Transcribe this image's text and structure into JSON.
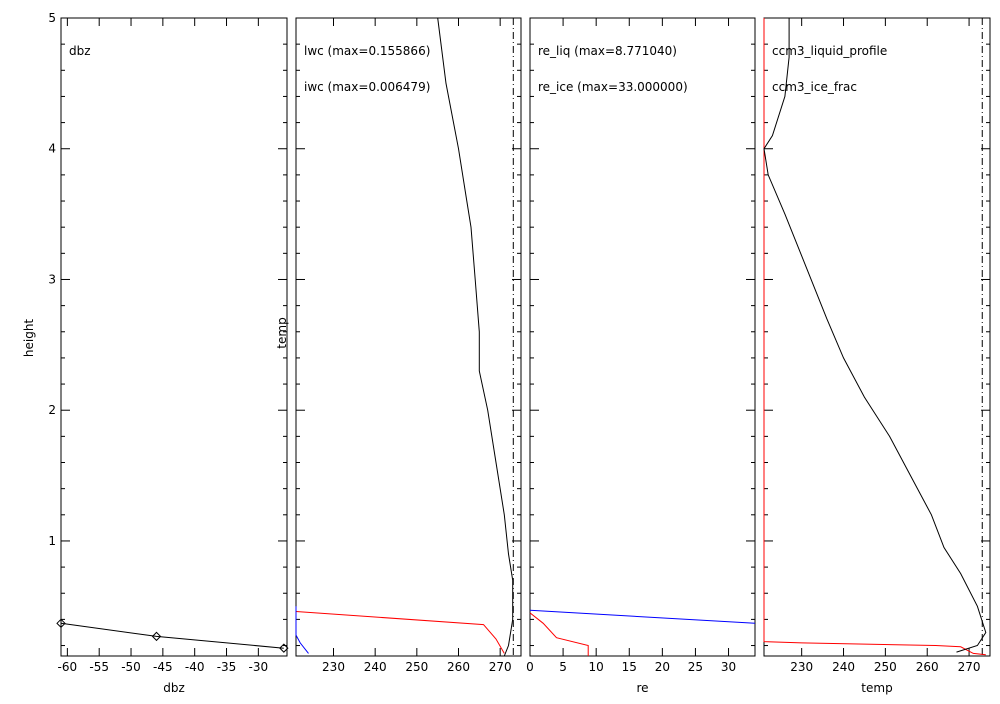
{
  "chart_data": [
    {
      "type": "line",
      "xlabel": "dbz",
      "ylabel": "height",
      "xlim": [
        -61,
        -25.5
      ],
      "ylim": [
        0.12,
        5.0
      ],
      "xticks": [
        -60,
        -55,
        -50,
        -45,
        -40,
        -35,
        -30
      ],
      "yticks": [
        1,
        2,
        3,
        4,
        5
      ],
      "legend": [
        {
          "text": "dbz",
          "color": "#000000"
        }
      ],
      "series": [
        {
          "name": "dbz",
          "color": "#000000",
          "marker": "diamond",
          "points": [
            [
              -61,
              0.37
            ],
            [
              -46,
              0.27
            ],
            [
              -26,
              0.18
            ]
          ]
        }
      ]
    },
    {
      "type": "line",
      "xlabel": "",
      "ylabel": "temp",
      "xlim": [
        221,
        275
      ],
      "ylim": [
        0.12,
        5.0
      ],
      "xticks": [
        230,
        240,
        250,
        260,
        270
      ],
      "legend": [
        {
          "text": "lwc (max=0.155866)",
          "color": "#ff0000"
        },
        {
          "text": "iwc (max=0.006479)",
          "color": "#0000ff"
        }
      ],
      "series": [
        {
          "name": "lwc",
          "color": "#ff0000",
          "points": [
            [
              221,
              0.46
            ],
            [
              266,
              0.36
            ],
            [
              269,
              0.25
            ],
            [
              271,
              0.14
            ]
          ]
        },
        {
          "name": "iwc",
          "color": "#0000ff",
          "points": [
            [
              221,
              0.5
            ],
            [
              221,
              0.28
            ],
            [
              222,
              0.22
            ],
            [
              224,
              0.14
            ]
          ]
        },
        {
          "name": "temp",
          "color": "#000000",
          "points": [
            [
              255,
              5.0
            ],
            [
              257,
              4.5
            ],
            [
              260,
              4.0
            ],
            [
              262,
              3.6
            ],
            [
              263,
              3.4
            ],
            [
              264,
              3.0
            ],
            [
              265,
              2.6
            ],
            [
              265,
              2.3
            ],
            [
              267,
              2.0
            ],
            [
              269,
              1.6
            ],
            [
              271,
              1.2
            ],
            [
              272,
              0.9
            ],
            [
              273,
              0.7
            ],
            [
              273,
              0.4
            ],
            [
              272,
              0.2
            ],
            [
              271,
              0.12
            ]
          ]
        }
      ],
      "reference_lines": [
        273.15
      ]
    },
    {
      "type": "line",
      "xlabel": "re",
      "ylabel": "",
      "xlim": [
        0,
        34
      ],
      "ylim": [
        0.12,
        5.0
      ],
      "xticks": [
        0,
        5,
        10,
        15,
        20,
        25,
        30
      ],
      "legend": [
        {
          "text": "re_liq (max=8.771040)",
          "color": "#ff0000"
        },
        {
          "text": "re_ice (max=33.000000)",
          "color": "#0000ff"
        }
      ],
      "series": [
        {
          "name": "re_liq",
          "color": "#ff0000",
          "points": [
            [
              0,
              0.45
            ],
            [
              2,
              0.37
            ],
            [
              4,
              0.26
            ],
            [
              8.8,
              0.2
            ],
            [
              8.8,
              0.12
            ]
          ]
        },
        {
          "name": "re_ice",
          "color": "#0000ff",
          "points": [
            [
              0,
              0.47
            ],
            [
              34,
              0.37
            ]
          ]
        }
      ]
    },
    {
      "type": "line",
      "xlabel": "temp",
      "ylabel": "",
      "xlim": [
        221,
        275
      ],
      "ylim": [
        0.12,
        5.0
      ],
      "xticks": [
        230,
        240,
        250,
        260,
        270
      ],
      "legend": [
        {
          "text": "ccm3_liquid_profile",
          "color": "#ff0000"
        },
        {
          "text": "ccm3_ice_frac",
          "color": "#0000ff"
        }
      ],
      "series": [
        {
          "name": "ccm3_liquid_profile",
          "color": "#ff0000",
          "points": [
            [
              221,
              5.0
            ],
            [
              221,
              0.23
            ],
            [
              230,
              0.22
            ],
            [
              262,
              0.2
            ],
            [
              268,
              0.19
            ],
            [
              271,
              0.14
            ],
            [
              274,
              0.13
            ]
          ]
        },
        {
          "name": "temp",
          "color": "#000000",
          "points": [
            [
              227,
              5.0
            ],
            [
              227,
              4.7
            ],
            [
              226,
              4.4
            ],
            [
              223,
              4.1
            ],
            [
              221,
              4.0
            ],
            [
              222,
              3.8
            ],
            [
              226,
              3.5
            ],
            [
              231,
              3.1
            ],
            [
              236,
              2.7
            ],
            [
              240,
              2.4
            ],
            [
              245,
              2.1
            ],
            [
              251,
              1.8
            ],
            [
              256,
              1.5
            ],
            [
              261,
              1.2
            ],
            [
              264,
              0.95
            ],
            [
              268,
              0.75
            ],
            [
              272,
              0.5
            ],
            [
              274,
              0.3
            ],
            [
              272,
              0.2
            ],
            [
              267,
              0.15
            ]
          ]
        }
      ],
      "reference_lines": [
        273.15
      ]
    }
  ]
}
